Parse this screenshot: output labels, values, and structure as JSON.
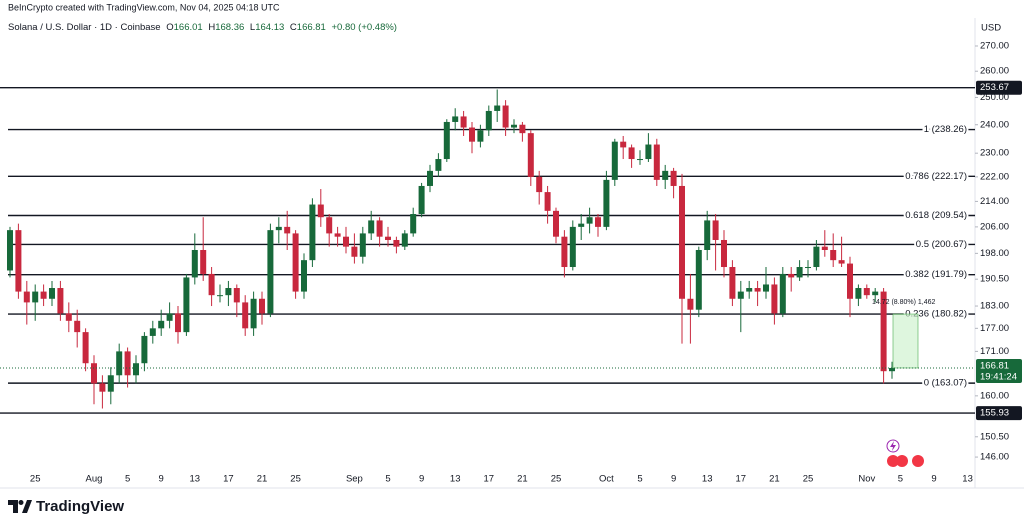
{
  "header": {
    "credit": "BeInCrypto created with TradingView.com, Nov 04, 2025 04:18 UTC",
    "brand": "TradingView"
  },
  "chart_data": {
    "type": "candlestick",
    "title": "Solana / U.S. Dollar · 1D · Coinbase",
    "ohlc_labels": [
      "O",
      "H",
      "L",
      "C"
    ],
    "change": "+0.80 (+0.48%)",
    "currency": "USD",
    "countdown": "19:41:24",
    "measure": "14.72 (8.80%) 1,462",
    "categories": [
      null,
      null,
      null,
      "25",
      null,
      null,
      null,
      null,
      null,
      null,
      "Aug",
      null,
      null,
      null,
      "5",
      null,
      null,
      null,
      "9",
      null,
      null,
      null,
      "13",
      null,
      null,
      null,
      "17",
      null,
      null,
      null,
      "21",
      null,
      null,
      null,
      "25",
      null,
      null,
      null,
      null,
      null,
      null,
      "Sep",
      null,
      null,
      null,
      "5",
      null,
      null,
      null,
      "9",
      null,
      null,
      null,
      "13",
      null,
      null,
      null,
      "17",
      null,
      null,
      null,
      "21",
      null,
      null,
      null,
      "25",
      null,
      null,
      null,
      null,
      null,
      "Oct",
      null,
      null,
      null,
      "5",
      null,
      null,
      null,
      "9",
      null,
      null,
      null,
      "13",
      null,
      null,
      null,
      "17",
      null,
      null,
      null,
      "21",
      null,
      null,
      null,
      "25",
      null,
      null,
      null,
      null,
      null,
      null,
      "Nov",
      null,
      null,
      null,
      "5",
      null,
      null,
      null,
      "9",
      null,
      null,
      null,
      "13"
    ],
    "open": [
      193,
      205,
      187,
      184,
      187,
      185,
      188,
      181,
      179,
      176,
      168,
      163,
      161,
      165,
      171,
      165,
      168,
      175,
      177,
      179,
      181,
      176,
      191,
      199,
      192,
      186,
      186,
      188,
      184,
      177,
      185,
      181,
      205,
      206,
      204,
      187,
      196,
      213,
      209,
      204,
      203,
      200,
      197,
      204,
      208,
      203,
      202,
      200,
      204,
      210,
      219,
      224,
      228,
      241,
      243,
      239,
      234,
      238,
      245,
      247,
      239,
      240,
      237,
      222,
      217,
      211,
      203,
      194,
      206,
      207,
      209,
      206,
      221,
      234,
      232,
      228,
      228,
      233,
      221,
      224,
      219,
      185,
      182,
      199,
      208,
      202,
      194,
      185,
      187,
      188,
      187,
      189,
      181,
      192,
      191,
      194,
      194,
      200,
      199,
      196,
      195,
      185,
      188,
      186,
      187,
      166.01,
      null,
      null,
      null,
      null,
      null,
      null,
      null,
      null,
      null
    ],
    "high": [
      206,
      207,
      190,
      189,
      189,
      190,
      190,
      184,
      182,
      177,
      170,
      165,
      167,
      173,
      172,
      170,
      176,
      179,
      182,
      184,
      183,
      192,
      204,
      209,
      194,
      189,
      190,
      189,
      186,
      187,
      187,
      207,
      209,
      211,
      205,
      198,
      215,
      218,
      210,
      206,
      206,
      204,
      206,
      211,
      209,
      206,
      203,
      205,
      212,
      220,
      226,
      230,
      242,
      246,
      245,
      241,
      240,
      247,
      253,
      249,
      242,
      241,
      238,
      224,
      219,
      212,
      205,
      208,
      210,
      212,
      210,
      224,
      235,
      236,
      233,
      231,
      237,
      235,
      226,
      225,
      223,
      192,
      200,
      211,
      210,
      205,
      196,
      190,
      190,
      190,
      194,
      191,
      194,
      194,
      196,
      196,
      202,
      205,
      204,
      203,
      197,
      189,
      189,
      188,
      188,
      168.36,
      null,
      null,
      null,
      null,
      null,
      null,
      null,
      null,
      null
    ],
    "low": [
      191,
      185,
      178,
      179,
      183,
      183,
      179,
      176,
      172,
      166,
      158,
      157,
      158,
      163,
      162,
      163,
      166,
      173,
      175,
      177,
      173,
      175,
      189,
      190,
      183,
      184,
      183,
      180,
      175,
      175,
      178,
      180,
      201,
      199,
      185,
      185,
      194,
      206,
      200,
      200,
      198,
      195,
      195,
      202,
      200,
      200,
      198,
      199,
      203,
      209,
      217,
      222,
      227,
      238,
      236,
      230,
      232,
      236,
      241,
      236,
      237,
      234,
      219,
      213,
      207,
      201,
      191,
      193,
      202,
      204,
      203,
      205,
      219,
      228,
      225,
      226,
      227,
      219,
      218,
      215,
      173,
      173,
      180,
      196,
      193,
      191,
      183,
      176,
      185,
      183,
      185,
      178,
      180,
      187,
      190,
      191,
      193,
      197,
      194,
      194,
      180,
      183,
      185,
      184,
      163,
      164.13,
      null,
      null,
      null,
      null,
      null,
      null,
      null,
      null,
      null
    ],
    "close": [
      205,
      187,
      184,
      187,
      185,
      188,
      181,
      179,
      176,
      168,
      163,
      161,
      165,
      171,
      165,
      168,
      175,
      177,
      179,
      181,
      176,
      191,
      199,
      192,
      186,
      186,
      188,
      184,
      177,
      185,
      181,
      205,
      206,
      204,
      187,
      196,
      213,
      209,
      204,
      203,
      200,
      197,
      204,
      208,
      203,
      202,
      200,
      204,
      210,
      219,
      224,
      228,
      241,
      243,
      239,
      234,
      238,
      245,
      247,
      239,
      240,
      237,
      222,
      217,
      211,
      203,
      194,
      206,
      207,
      209,
      206,
      221,
      234,
      232,
      228,
      228,
      233,
      221,
      224,
      219,
      185,
      182,
      199,
      208,
      202,
      194,
      185,
      187,
      188,
      187,
      189,
      181,
      192,
      191,
      194,
      194,
      200,
      199,
      196,
      195,
      185,
      188,
      186,
      187,
      166.01,
      166.81,
      null,
      null,
      null,
      null,
      null,
      null,
      null,
      null,
      null
    ],
    "up_color": "#17693a",
    "down_color": "#c8283e",
    "log_scale": true,
    "grid": false,
    "ylim": [
      139.4,
      280.7
    ],
    "yticks": [
      {
        "value": 270,
        "label": "270.00"
      },
      {
        "value": 260,
        "label": "260.00"
      },
      {
        "value": 250,
        "label": "250.00"
      },
      {
        "value": 240,
        "label": "240.00"
      },
      {
        "value": 230,
        "label": "230.00"
      },
      {
        "value": 222,
        "label": "222.00"
      },
      {
        "value": 214,
        "label": "214.00"
      },
      {
        "value": 206,
        "label": "206.00"
      },
      {
        "value": 198,
        "label": "198.00"
      },
      {
        "value": 190.5,
        "label": "190.50"
      },
      {
        "value": 183,
        "label": "183.00"
      },
      {
        "value": 177,
        "label": "177.00"
      },
      {
        "value": 171,
        "label": "171.00"
      },
      {
        "value": 160,
        "label": "160.00"
      },
      {
        "value": 150.5,
        "label": "150.50"
      },
      {
        "value": 146,
        "label": "146.00"
      }
    ],
    "levels": [
      253.67,
      155.93
    ],
    "fib_levels": [
      {
        "value": 238.26,
        "label": "1 (238.26)"
      },
      {
        "value": 222.17,
        "label": "0.786 (222.17)"
      },
      {
        "value": 209.54,
        "label": "0.618 (209.54)"
      },
      {
        "value": 200.67,
        "label": "0.5 (200.67)"
      },
      {
        "value": 191.79,
        "label": "0.382 (191.79)"
      },
      {
        "value": 180.82,
        "label": "0.236 (180.82)"
      },
      {
        "value": 163.07,
        "label": "0 (163.07)"
      }
    ]
  }
}
